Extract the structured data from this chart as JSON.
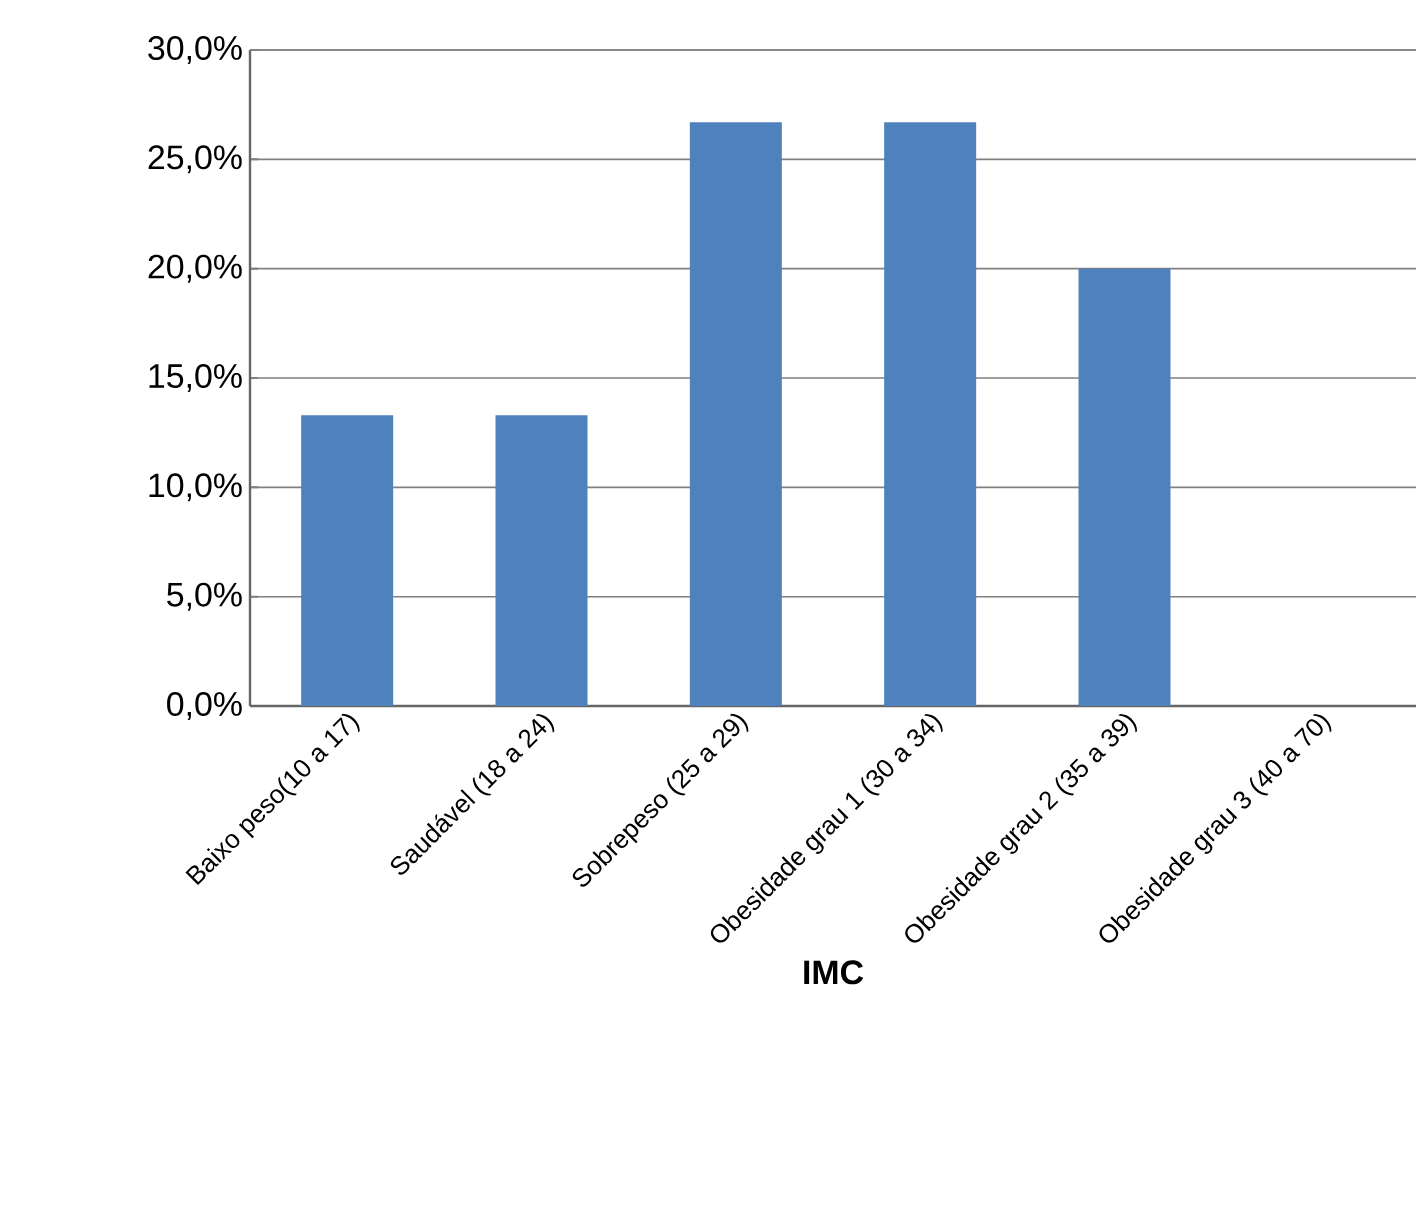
{
  "chart_data": {
    "type": "bar",
    "xlabel": "IMC",
    "categories": [
      "Baixo peso(10 a 17)",
      "Saudável (18 a 24)",
      "Sobrepeso (25 a 29)",
      "Obesidade grau 1 (30 a 34)",
      "Obesidade grau 2 (35 a 39)",
      "Obesidade grau 3 (40 a 70)"
    ],
    "values": [
      13.3,
      13.3,
      26.7,
      26.7,
      20.0,
      0
    ],
    "color": "#4f81bd",
    "ylim": [
      0,
      30
    ],
    "yticks": [
      {
        "value": 0,
        "label": "0,0%"
      },
      {
        "value": 5,
        "label": "5,0%"
      },
      {
        "value": 10,
        "label": "10,0%"
      },
      {
        "value": 15,
        "label": "15,0%"
      },
      {
        "value": 20,
        "label": "20,0%"
      },
      {
        "value": 25,
        "label": "25,0%"
      },
      {
        "value": 30,
        "label": "30,0%"
      }
    ],
    "grid": "y"
  }
}
